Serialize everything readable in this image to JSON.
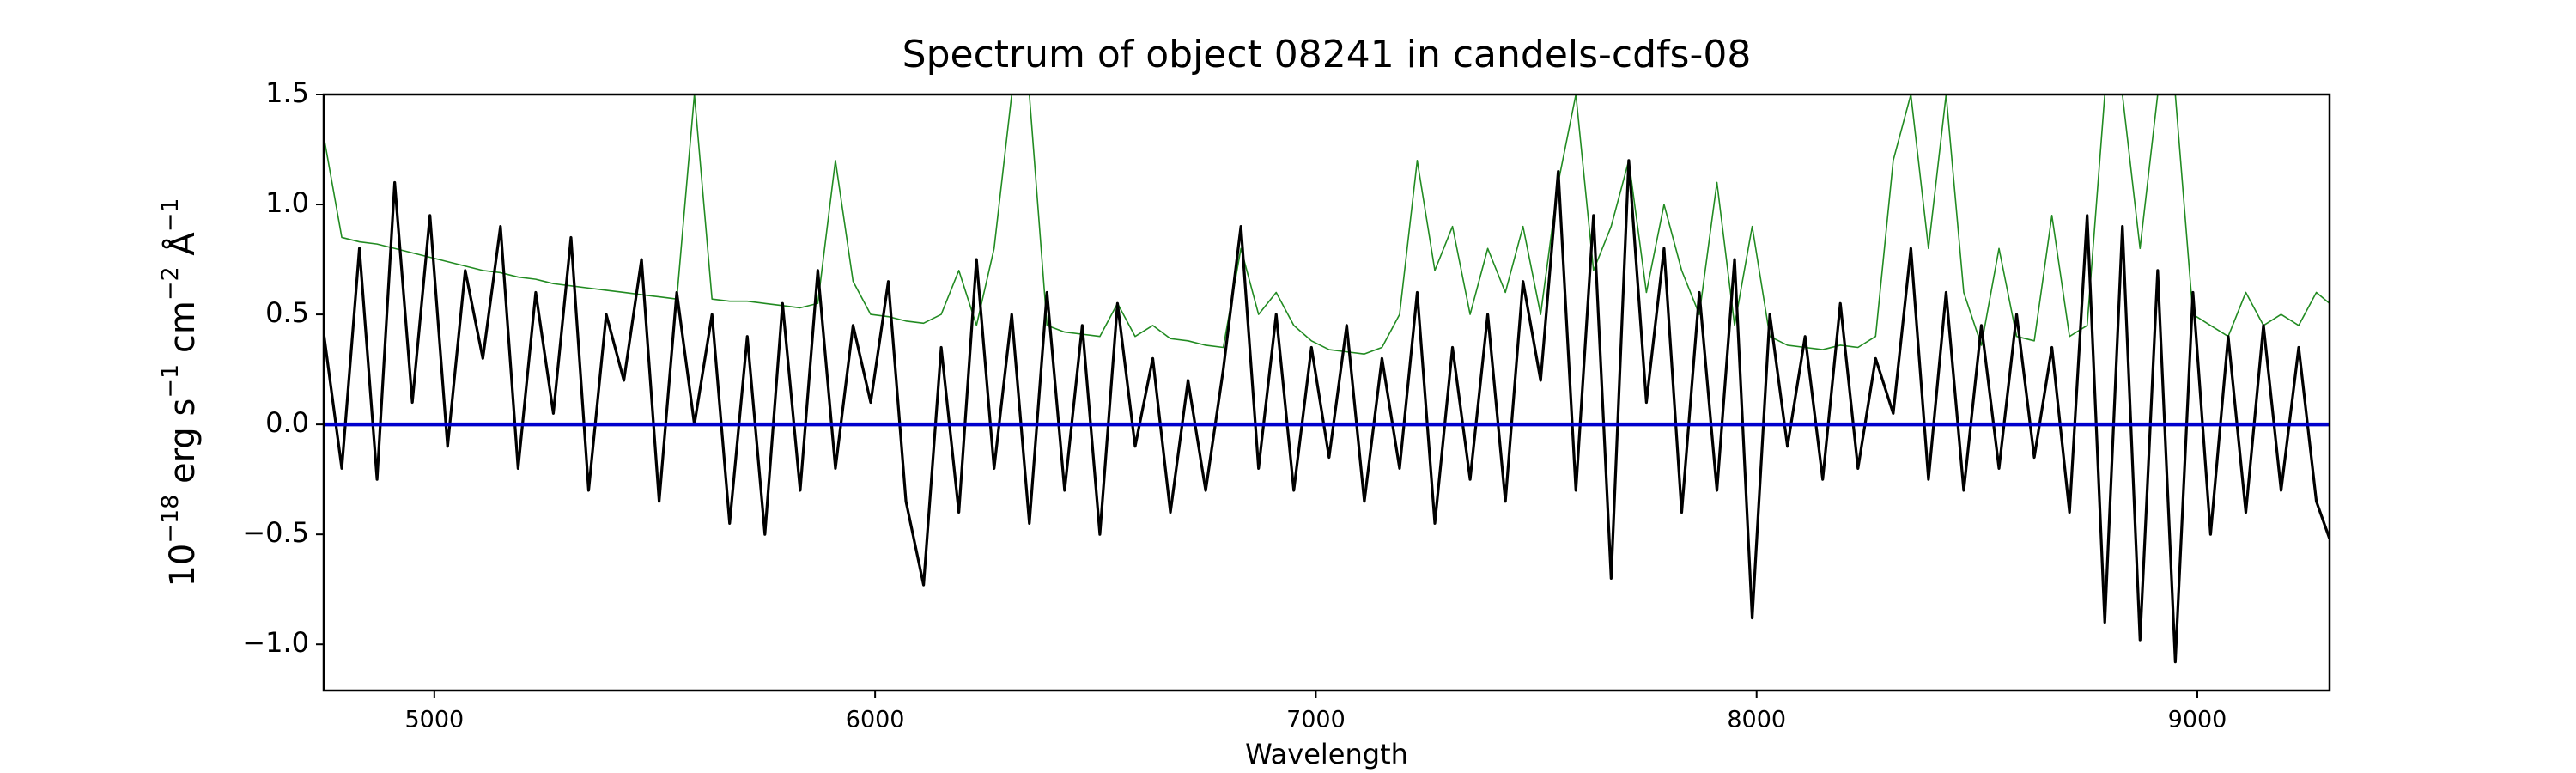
{
  "chart_data": {
    "type": "line",
    "title": "Spectrum of object 08241 in candels-cdfs-08",
    "xlabel": "Wavelength",
    "ylabel": [
      "10",
      "−18",
      " erg s",
      "−1",
      " cm",
      "−2",
      " Å",
      "−1"
    ],
    "x": [
      4750,
      4790,
      4830,
      4870,
      4910,
      4950,
      4990,
      5030,
      5070,
      5110,
      5150,
      5190,
      5230,
      5270,
      5310,
      5350,
      5390,
      5430,
      5470,
      5510,
      5550,
      5590,
      5630,
      5670,
      5710,
      5750,
      5790,
      5830,
      5870,
      5910,
      5950,
      5990,
      6030,
      6070,
      6110,
      6150,
      6190,
      6230,
      6270,
      6310,
      6350,
      6390,
      6430,
      6470,
      6510,
      6550,
      6590,
      6630,
      6670,
      6710,
      6750,
      6790,
      6830,
      6870,
      6910,
      6950,
      6990,
      7030,
      7070,
      7110,
      7150,
      7190,
      7230,
      7270,
      7310,
      7350,
      7390,
      7430,
      7470,
      7510,
      7550,
      7590,
      7630,
      7670,
      7710,
      7750,
      7790,
      7830,
      7870,
      7910,
      7950,
      7990,
      8030,
      8070,
      8110,
      8150,
      8190,
      8230,
      8270,
      8310,
      8350,
      8390,
      8430,
      8470,
      8510,
      8550,
      8590,
      8630,
      8670,
      8710,
      8750,
      8790,
      8830,
      8870,
      8910,
      8950,
      8990,
      9030,
      9070,
      9110,
      9150,
      9190,
      9230,
      9270,
      9300
    ],
    "series": [
      {
        "color": "#228b22",
        "values": [
          1.3,
          0.85,
          0.83,
          0.82,
          0.8,
          0.78,
          0.76,
          0.74,
          0.72,
          0.7,
          0.69,
          0.67,
          0.66,
          0.64,
          0.63,
          0.62,
          0.61,
          0.6,
          0.59,
          0.58,
          0.57,
          1.5,
          0.57,
          0.56,
          0.56,
          0.55,
          0.54,
          0.53,
          0.55,
          1.2,
          0.65,
          0.5,
          0.49,
          0.47,
          0.46,
          0.5,
          0.7,
          0.45,
          0.8,
          1.5,
          1.5,
          0.45,
          0.42,
          0.41,
          0.4,
          0.55,
          0.4,
          0.45,
          0.39,
          0.38,
          0.36,
          0.35,
          0.8,
          0.5,
          0.6,
          0.45,
          0.38,
          0.34,
          0.33,
          0.32,
          0.35,
          0.5,
          1.2,
          0.7,
          0.9,
          0.5,
          0.8,
          0.6,
          0.9,
          0.5,
          1.1,
          1.5,
          0.7,
          0.9,
          1.2,
          0.6,
          1.0,
          0.7,
          0.5,
          1.1,
          0.45,
          0.9,
          0.4,
          0.36,
          0.35,
          0.34,
          0.36,
          0.35,
          0.4,
          1.2,
          1.5,
          0.8,
          1.5,
          0.6,
          0.36,
          0.8,
          0.4,
          0.38,
          0.95,
          0.4,
          0.45,
          1.5,
          1.5,
          0.8,
          1.5,
          1.5,
          0.5,
          0.45,
          0.4,
          0.6,
          0.45,
          0.5,
          0.45,
          0.6,
          0.55
        ]
      },
      {
        "color": "#000000",
        "values": [
          0.4,
          -0.2,
          0.8,
          -0.25,
          1.1,
          0.1,
          0.95,
          -0.1,
          0.7,
          0.3,
          0.9,
          -0.2,
          0.6,
          0.05,
          0.85,
          -0.3,
          0.5,
          0.2,
          0.75,
          -0.35,
          0.6,
          0.0,
          0.5,
          -0.45,
          0.4,
          -0.5,
          0.55,
          -0.3,
          0.7,
          -0.2,
          0.45,
          0.1,
          0.65,
          -0.35,
          -0.73,
          0.35,
          -0.4,
          0.75,
          -0.2,
          0.5,
          -0.45,
          0.6,
          -0.3,
          0.45,
          -0.5,
          0.55,
          -0.1,
          0.3,
          -0.4,
          0.2,
          -0.3,
          0.25,
          0.9,
          -0.2,
          0.5,
          -0.3,
          0.35,
          -0.15,
          0.45,
          -0.35,
          0.3,
          -0.2,
          0.6,
          -0.45,
          0.35,
          -0.25,
          0.5,
          -0.35,
          0.65,
          0.2,
          1.15,
          -0.3,
          0.95,
          -0.7,
          1.2,
          0.1,
          0.8,
          -0.4,
          0.6,
          -0.3,
          0.75,
          -0.88,
          0.5,
          -0.1,
          0.4,
          -0.25,
          0.55,
          -0.2,
          0.3,
          0.05,
          0.8,
          -0.25,
          0.6,
          -0.3,
          0.45,
          -0.2,
          0.5,
          -0.15,
          0.35,
          -0.4,
          0.95,
          -0.9,
          0.9,
          -0.98,
          0.7,
          -1.08,
          0.6,
          -0.5,
          0.4,
          -0.4,
          0.45,
          -0.3,
          0.35,
          -0.35,
          -0.52
        ]
      },
      {
        "color": "#0000cd",
        "values": [
          0,
          0,
          0,
          0,
          0,
          0,
          0,
          0,
          0,
          0,
          0,
          0,
          0,
          0,
          0,
          0,
          0,
          0,
          0,
          0,
          0,
          0,
          0,
          0,
          0,
          0,
          0,
          0,
          0,
          0,
          0,
          0,
          0,
          0,
          0,
          0,
          0,
          0,
          0,
          0,
          0,
          0,
          0,
          0,
          0,
          0,
          0,
          0,
          0,
          0,
          0,
          0,
          0,
          0,
          0,
          0,
          0,
          0,
          0,
          0,
          0,
          0,
          0,
          0,
          0,
          0,
          0,
          0,
          0,
          0,
          0,
          0,
          0,
          0,
          0,
          0,
          0,
          0,
          0,
          0,
          0,
          0,
          0,
          0,
          0,
          0,
          0,
          0,
          0,
          0,
          0,
          0,
          0,
          0,
          0,
          0,
          0,
          0,
          0,
          0,
          0,
          0,
          0,
          0,
          0,
          0,
          0,
          0,
          0,
          0,
          0,
          0,
          0,
          0,
          0
        ]
      }
    ],
    "xlim": [
      4749,
      9300
    ],
    "xticks": [
      5000,
      6000,
      7000,
      8000,
      9000
    ],
    "ylim": [
      -1.21,
      1.5
    ],
    "yticks": [
      {
        "value": -1.0,
        "label": "−1.0"
      },
      {
        "value": -0.5,
        "label": "−0.5"
      },
      {
        "value": 0.0,
        "label": "0.0"
      },
      0.5,
      {
        "value": 1.0,
        "label": "1.0"
      },
      1.5
    ]
  }
}
